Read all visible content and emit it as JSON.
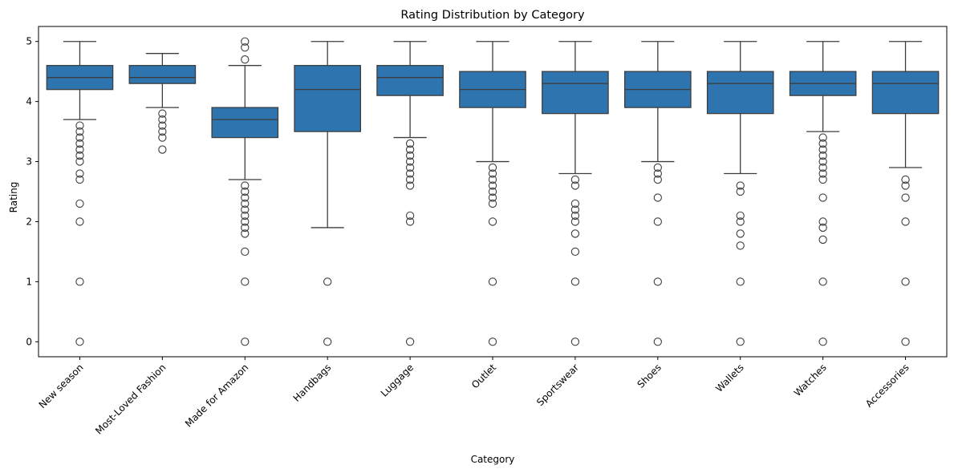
{
  "chart_data": {
    "type": "box",
    "title": "Rating Distribution by Category",
    "xlabel": "Category",
    "ylabel": "Rating",
    "ylim": [
      -0.25,
      5.25
    ],
    "yticks": [
      0,
      1,
      2,
      3,
      4,
      5
    ],
    "grid": false,
    "legend": "none",
    "box_color": "#2e75b0",
    "line_color": "#3d3d3d",
    "categories": [
      "New season",
      "Most-Loved Fashion",
      "Made for Amazon",
      "Handbags",
      "Luggage",
      "Outlet",
      "Sportswear",
      "Shoes",
      "Wallets",
      "Watches",
      "Accessories"
    ],
    "boxes": [
      {
        "q1": 4.2,
        "median": 4.4,
        "q3": 4.6,
        "whisker_low": 3.7,
        "whisker_high": 5.0,
        "outliers": [
          3.6,
          3.5,
          3.4,
          3.3,
          3.2,
          3.1,
          3.0,
          2.8,
          2.7,
          2.3,
          2.0,
          1.0,
          0.0
        ]
      },
      {
        "q1": 4.3,
        "median": 4.4,
        "q3": 4.6,
        "whisker_low": 3.9,
        "whisker_high": 4.8,
        "outliers": [
          3.8,
          3.7,
          3.6,
          3.5,
          3.4,
          3.2
        ]
      },
      {
        "q1": 3.4,
        "median": 3.7,
        "q3": 3.9,
        "whisker_low": 2.7,
        "whisker_high": 4.6,
        "outliers": [
          5.0,
          4.9,
          4.7,
          2.6,
          2.5,
          2.4,
          2.3,
          2.2,
          2.1,
          2.0,
          1.9,
          1.8,
          1.5,
          1.0,
          0.0
        ]
      },
      {
        "q1": 3.5,
        "median": 4.2,
        "q3": 4.6,
        "whisker_low": 1.9,
        "whisker_high": 5.0,
        "outliers": [
          1.0,
          0.0
        ]
      },
      {
        "q1": 4.1,
        "median": 4.4,
        "q3": 4.6,
        "whisker_low": 3.4,
        "whisker_high": 5.0,
        "outliers": [
          3.3,
          3.2,
          3.1,
          3.0,
          2.9,
          2.8,
          2.7,
          2.6,
          2.1,
          2.0,
          0.0
        ]
      },
      {
        "q1": 3.9,
        "median": 4.2,
        "q3": 4.5,
        "whisker_low": 3.0,
        "whisker_high": 5.0,
        "outliers": [
          2.9,
          2.8,
          2.7,
          2.6,
          2.5,
          2.4,
          2.3,
          2.0,
          1.0,
          0.0
        ]
      },
      {
        "q1": 3.8,
        "median": 4.3,
        "q3": 4.5,
        "whisker_low": 2.8,
        "whisker_high": 5.0,
        "outliers": [
          2.7,
          2.6,
          2.3,
          2.2,
          2.1,
          2.0,
          1.8,
          1.5,
          1.0,
          0.0
        ]
      },
      {
        "q1": 3.9,
        "median": 4.2,
        "q3": 4.5,
        "whisker_low": 3.0,
        "whisker_high": 5.0,
        "outliers": [
          2.9,
          2.8,
          2.7,
          2.4,
          2.0,
          1.0,
          0.0
        ]
      },
      {
        "q1": 3.8,
        "median": 4.3,
        "q3": 4.5,
        "whisker_low": 2.8,
        "whisker_high": 5.0,
        "outliers": [
          2.6,
          2.5,
          2.1,
          2.0,
          1.8,
          1.6,
          1.0,
          0.0
        ]
      },
      {
        "q1": 4.1,
        "median": 4.3,
        "q3": 4.5,
        "whisker_low": 3.5,
        "whisker_high": 5.0,
        "outliers": [
          3.4,
          3.3,
          3.2,
          3.1,
          3.0,
          2.9,
          2.8,
          2.7,
          2.4,
          2.0,
          1.9,
          1.7,
          1.0,
          0.0
        ]
      },
      {
        "q1": 3.8,
        "median": 4.3,
        "q3": 4.5,
        "whisker_low": 2.9,
        "whisker_high": 5.0,
        "outliers": [
          2.7,
          2.6,
          2.4,
          2.0,
          1.0,
          0.0
        ]
      }
    ]
  }
}
